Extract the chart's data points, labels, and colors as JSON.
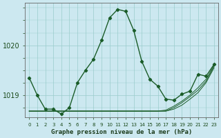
{
  "title": "Graphe pression niveau de la mer (hPa)",
  "bg_color": "#cce8f0",
  "grid_color": "#99cccc",
  "line_color": "#1a5c28",
  "x_labels": [
    "0",
    "1",
    "2",
    "3",
    "4",
    "5",
    "6",
    "7",
    "8",
    "9",
    "10",
    "11",
    "12",
    "13",
    "14",
    "15",
    "16",
    "17",
    "18",
    "19",
    "20",
    "21",
    "22",
    "23"
  ],
  "ylim": [
    1018.55,
    1020.85
  ],
  "yticks": [
    1019,
    1020
  ],
  "main_series": [
    1019.35,
    1019.0,
    1018.72,
    1018.72,
    1018.62,
    1018.75,
    1019.25,
    1019.5,
    1019.72,
    1020.1,
    1020.55,
    1020.72,
    1020.68,
    1020.3,
    1019.68,
    1019.32,
    1019.18,
    1018.92,
    1018.9,
    1019.02,
    1019.08,
    1019.42,
    1019.38,
    1019.62
  ],
  "fan_series": [
    [
      1018.68,
      1018.68,
      1018.68,
      1018.68,
      1018.68,
      1018.68,
      1018.68,
      1018.68,
      1018.68,
      1018.68,
      1018.68,
      1018.68,
      1018.68,
      1018.68,
      1018.68,
      1018.68,
      1018.68,
      1018.68,
      1018.72,
      1018.8,
      1018.92,
      1019.05,
      1019.25,
      1019.55
    ],
    [
      1018.68,
      1018.68,
      1018.68,
      1018.68,
      1018.68,
      1018.68,
      1018.68,
      1018.68,
      1018.68,
      1018.68,
      1018.68,
      1018.68,
      1018.68,
      1018.68,
      1018.68,
      1018.68,
      1018.68,
      1018.7,
      1018.78,
      1018.88,
      1019.0,
      1019.15,
      1019.32,
      1019.6
    ],
    [
      1018.68,
      1018.68,
      1018.68,
      1018.68,
      1018.68,
      1018.68,
      1018.68,
      1018.68,
      1018.68,
      1018.68,
      1018.68,
      1018.68,
      1018.68,
      1018.68,
      1018.68,
      1018.68,
      1018.68,
      1018.68,
      1018.75,
      1018.85,
      1018.97,
      1019.1,
      1019.28,
      1019.58
    ]
  ]
}
